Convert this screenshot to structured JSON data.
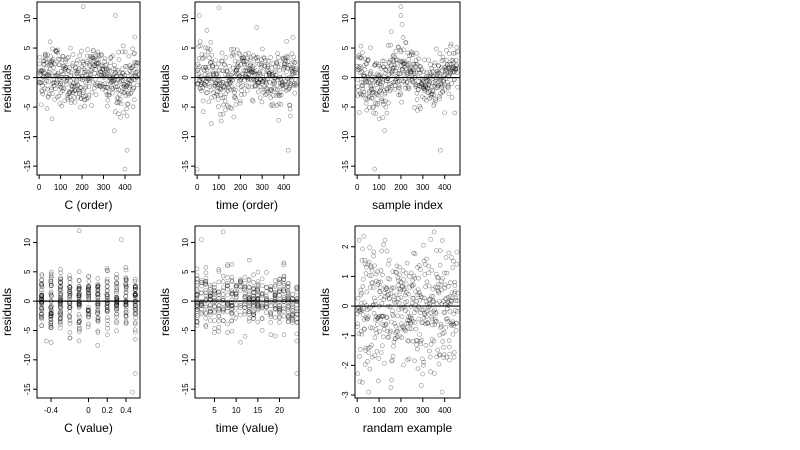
{
  "figure": {
    "background": "#ffffff",
    "point_color": "#000000",
    "point_style": "open-circle",
    "point_opacity": 0.45
  },
  "chart_data": [
    {
      "type": "scatter",
      "xlabel": "C (order)",
      "ylabel": "residuals",
      "xlim": [
        -10,
        470
      ],
      "ylim": [
        -16.5,
        12.8
      ],
      "xticks": [
        0,
        100,
        200,
        300,
        400
      ],
      "yticks": [
        -15,
        -10,
        -5,
        0,
        5,
        10
      ],
      "hline": 0,
      "n_points": 460,
      "pattern": "order",
      "outliers": [
        {
          "x": 205,
          "y": 12
        },
        {
          "x": 355,
          "y": 10.5
        },
        {
          "x": 410,
          "y": -12.3
        },
        {
          "x": 400,
          "y": -15.5
        },
        {
          "x": 410,
          "y": -6.5
        },
        {
          "x": 60,
          "y": -7
        }
      ]
    },
    {
      "type": "scatter",
      "xlabel": "time (order)",
      "ylabel": "residuals",
      "xlim": [
        -10,
        470
      ],
      "ylim": [
        -16.5,
        12.8
      ],
      "xticks": [
        0,
        100,
        200,
        300,
        400
      ],
      "yticks": [
        -15,
        -10,
        -5,
        0,
        5,
        10
      ],
      "hline": 0,
      "n_points": 460,
      "pattern": "order",
      "outliers": [
        {
          "x": 10,
          "y": 10.5
        },
        {
          "x": 100,
          "y": 11.8
        },
        {
          "x": 45,
          "y": 8
        },
        {
          "x": 420,
          "y": -12.3
        },
        {
          "x": 0,
          "y": -15.5
        },
        {
          "x": 430,
          "y": -6.5
        }
      ]
    },
    {
      "type": "scatter",
      "xlabel": "sample index",
      "ylabel": "residuals",
      "xlim": [
        -10,
        470
      ],
      "ylim": [
        -16.5,
        12.8
      ],
      "xticks": [
        0,
        100,
        200,
        300,
        400
      ],
      "yticks": [
        -15,
        -10,
        -5,
        0,
        5,
        10
      ],
      "hline": 0,
      "n_points": 460,
      "pattern": "order",
      "outliers": [
        {
          "x": 200,
          "y": 12
        },
        {
          "x": 200,
          "y": 10.5
        },
        {
          "x": 205,
          "y": 9
        },
        {
          "x": 380,
          "y": -12.3
        },
        {
          "x": 80,
          "y": -15.5
        },
        {
          "x": 100,
          "y": -7
        }
      ]
    },
    {
      "type": "scatter",
      "xlabel": "C (value)",
      "ylabel": "residuals",
      "xlim": [
        -0.55,
        0.55
      ],
      "ylim": [
        -16.5,
        12.8
      ],
      "xticks": [
        -0.4,
        0.0,
        0.2,
        0.4
      ],
      "yticks": [
        -15,
        -10,
        -5,
        0,
        5,
        10
      ],
      "hline": 0,
      "n_points": 460,
      "pattern": "columns",
      "columns": [
        -0.5,
        -0.4,
        -0.3,
        -0.2,
        -0.1,
        0.0,
        0.1,
        0.2,
        0.3,
        0.4,
        0.5
      ],
      "outliers": [
        {
          "x": -0.1,
          "y": 12
        },
        {
          "x": 0.35,
          "y": 10.5
        },
        {
          "x": 0.5,
          "y": -12.3
        },
        {
          "x": 0.47,
          "y": -15.5
        },
        {
          "x": 0.5,
          "y": -6.5
        },
        {
          "x": -0.45,
          "y": -6.8
        }
      ]
    },
    {
      "type": "scatter",
      "xlabel": "time (value)",
      "ylabel": "residuals",
      "xlim": [
        0.5,
        24.5
      ],
      "ylim": [
        -16.5,
        12.8
      ],
      "xticks": [
        5,
        10,
        15,
        20
      ],
      "yticks": [
        -15,
        -10,
        -5,
        0,
        5,
        10
      ],
      "hline": 0,
      "n_points": 460,
      "pattern": "columns",
      "columns": [
        1,
        2,
        3,
        4,
        5,
        6,
        7,
        8,
        9,
        10,
        11,
        12,
        13,
        14,
        15,
        16,
        17,
        18,
        19,
        20,
        21,
        22,
        23,
        24
      ],
      "outliers": [
        {
          "x": 2,
          "y": 10.5
        },
        {
          "x": 7,
          "y": 11.8
        },
        {
          "x": 24,
          "y": -12.3
        },
        {
          "x": 24,
          "y": -6.8
        },
        {
          "x": 11,
          "y": -7
        }
      ]
    },
    {
      "type": "scatter",
      "xlabel": "randam example",
      "ylabel": "residuals",
      "xlim": [
        -10,
        470
      ],
      "ylim": [
        -3.1,
        2.7
      ],
      "xticks": [
        0,
        100,
        200,
        300,
        400
      ],
      "yticks": [
        -3,
        -2,
        -1,
        0,
        1,
        2
      ],
      "hline": 0,
      "n_points": 460,
      "pattern": "random",
      "outliers": []
    }
  ]
}
